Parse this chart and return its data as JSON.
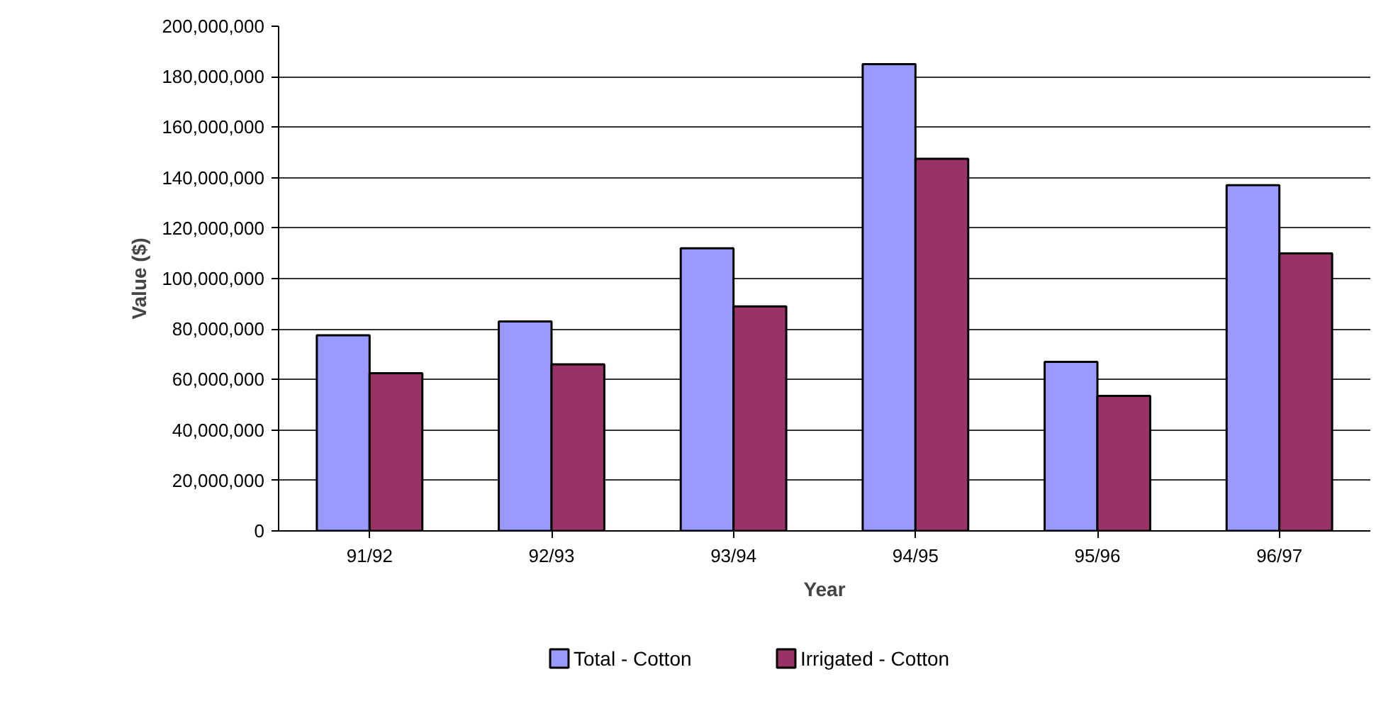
{
  "chart_data": {
    "type": "bar",
    "xlabel": "Year",
    "ylabel": "Value ($)",
    "categories": [
      "91/92",
      "92/93",
      "93/94",
      "94/95",
      "95/96",
      "96/97"
    ],
    "series": [
      {
        "name": "Total - Cotton",
        "color": "#9999ff",
        "values": [
          77500000,
          83000000,
          112000000,
          185000000,
          67000000,
          137000000
        ]
      },
      {
        "name": "Irrigated - Cotton",
        "color": "#993366",
        "values": [
          62500000,
          66000000,
          89000000,
          147500000,
          53500000,
          110000000
        ]
      }
    ],
    "ylim": [
      0,
      200000000
    ],
    "yticks": [
      {
        "value": 0,
        "label": "0"
      },
      {
        "value": 20000000,
        "label": "20,000,000"
      },
      {
        "value": 40000000,
        "label": "40,000,000"
      },
      {
        "value": 60000000,
        "label": "60,000,000"
      },
      {
        "value": 80000000,
        "label": "80,000,000"
      },
      {
        "value": 100000000,
        "label": "100,000,000"
      },
      {
        "value": 120000000,
        "label": "120,000,000"
      },
      {
        "value": 140000000,
        "label": "140,000,000"
      },
      {
        "value": 160000000,
        "label": "160,000,000"
      },
      {
        "value": 180000000,
        "label": "180,000,000"
      },
      {
        "value": 200000000,
        "label": "200,000,000"
      }
    ],
    "grid": "y",
    "legend": "bottom"
  }
}
